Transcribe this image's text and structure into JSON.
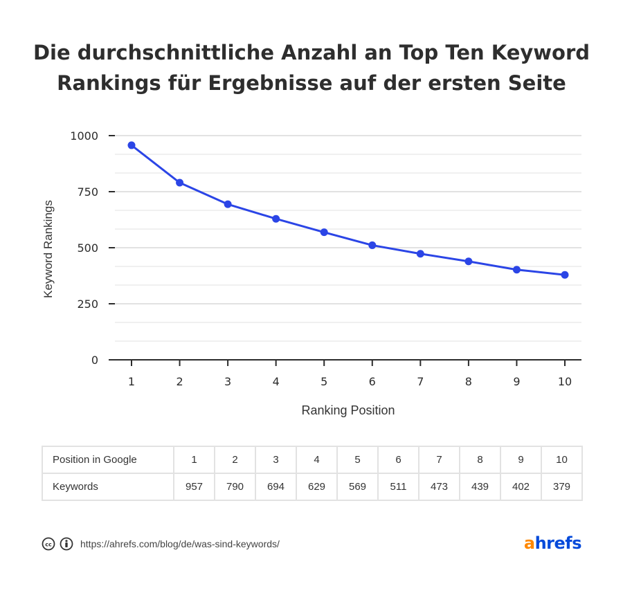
{
  "title_line1": "Die durchschnittliche Anzahl an Top Ten Keyword",
  "title_line2": "Rankings für Ergebnisse auf der ersten Seite",
  "chart_data": {
    "type": "line",
    "x": [
      1,
      2,
      3,
      4,
      5,
      6,
      7,
      8,
      9,
      10
    ],
    "values": [
      957,
      790,
      694,
      629,
      569,
      511,
      473,
      439,
      402,
      379
    ],
    "xlabel": "Ranking Position",
    "ylabel": "Keyword Rankings",
    "ylim": [
      0,
      1000
    ],
    "yticks": [
      0,
      250,
      500,
      750,
      1000
    ],
    "line_color": "#2b45e6",
    "grid": true
  },
  "table": {
    "row1_label": "Position in  Google",
    "row2_label": "Keywords",
    "positions": [
      "1",
      "2",
      "3",
      "4",
      "5",
      "6",
      "7",
      "8",
      "9",
      "10"
    ],
    "keywords": [
      "957",
      "790",
      "694",
      "629",
      "569",
      "511",
      "473",
      "439",
      "402",
      "379"
    ]
  },
  "footer": {
    "url": "https://ahrefs.com/blog/de/was-sind-keywords/",
    "icons": [
      "cc-icon",
      "attribution-icon"
    ]
  },
  "logo": {
    "a": "a",
    "rest": "hrefs",
    "orange": "#ff8800",
    "blue": "#054ada"
  }
}
